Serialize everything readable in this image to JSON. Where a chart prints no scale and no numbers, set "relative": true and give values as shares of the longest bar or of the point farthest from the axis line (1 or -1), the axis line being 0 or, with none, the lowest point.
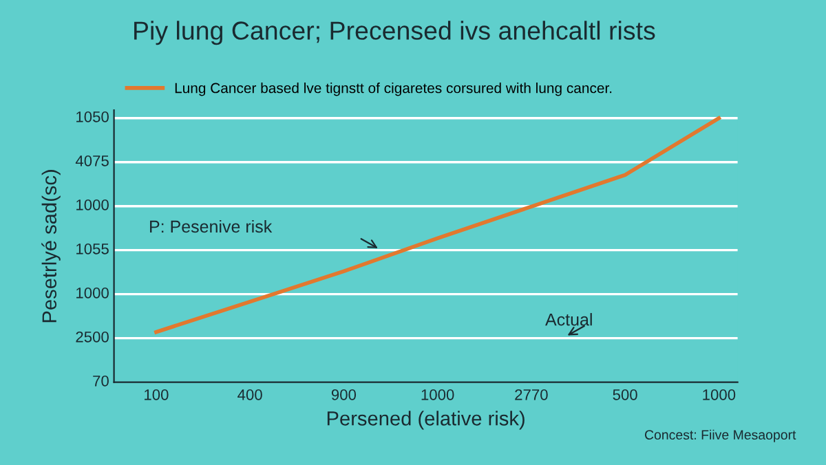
{
  "chart_data": {
    "type": "line",
    "title": "Piy lung Cancer; Precensed ivs anehcaltl rists",
    "xlabel": "Persened (elative risk)",
    "ylabel": "Pesetrlyé sad(sc)",
    "categories": [
      "100",
      "400",
      "900",
      "1000",
      "2770",
      "500",
      "1000"
    ],
    "series": [
      {
        "name": "Lung Cancer based lve tignstt of cigaretes corsured with lung cancer.",
        "color": "#e2782e",
        "values": [
          0.19,
          0.305,
          0.42,
          0.545,
          0.665,
          0.785,
          1
        ]
      }
    ],
    "relative": true,
    "grid": "y",
    "legend": "top",
    "line_style": "solid",
    "annotations": [
      "P: Pesenive risk",
      "Actual",
      "Concest: Fiive Mesaoport",
      "1050",
      "4075",
      "1000",
      "1055",
      "1000",
      "2500",
      "70"
    ]
  }
}
